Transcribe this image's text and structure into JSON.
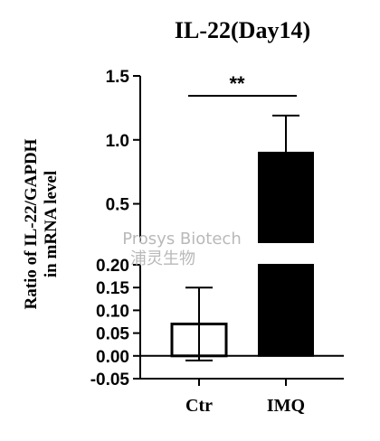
{
  "chart_data": {
    "type": "bar",
    "title": "IL-22(Day14)",
    "ylabel": [
      "Ratio of IL-22/GAPDH",
      "in mRNA level"
    ],
    "categories": [
      "Ctr",
      "IMQ"
    ],
    "values": [
      0.07,
      0.9
    ],
    "errors": [
      0.08,
      0.29
    ],
    "bar_fill": [
      "#ffffff",
      "#000000"
    ],
    "y_axis_break": {
      "lower_range": [
        -0.05,
        0.2
      ],
      "upper_range": [
        0.2,
        1.5
      ],
      "lower_ticks": [
        "-0.05",
        "0.00",
        "0.05",
        "0.10",
        "0.15",
        "0.20"
      ],
      "upper_ticks": [
        "0.5",
        "1.0",
        "1.5"
      ]
    },
    "annotation": {
      "label": "**",
      "between": [
        "Ctr",
        "IMQ"
      ]
    },
    "grid": false,
    "legend": "none"
  },
  "watermark": {
    "line1": "Prosys Biotech",
    "line2": "浦灵生物"
  }
}
